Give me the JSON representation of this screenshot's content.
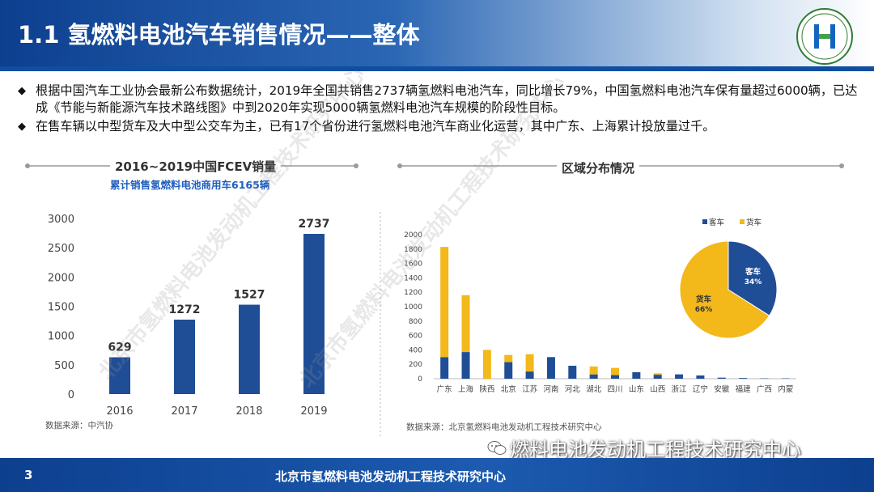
{
  "header": {
    "title": "1.1 氢燃料电池汽车销售情况——整体"
  },
  "bullets": [
    {
      "mark": "◆",
      "text": "根据中国汽车工业协会最新公布数据统计，2019年全国共销售2737辆氢燃料电池汽车，同比增长79%，中国氢燃料电池汽车保有量超过6000辆，已达成《节能与新能源汽车技术路线图》中到2020年实现5000辆氢燃料电池汽车规模的阶段性目标。"
    },
    {
      "mark": "◆",
      "text": "在售车辆以中型货车及大中型公交车为主，已有17个省份进行氢燃料电池汽车商业化运营，其中广东、上海累计投放量过千。"
    }
  ],
  "left_panel": {
    "section_title": "2016~2019中国FCEV销量",
    "subtitle": "累计销售氢燃料电池商用车6165辆",
    "source": "数据来源：中汽协"
  },
  "right_panel": {
    "section_title": "区域分布情况",
    "source": "数据来源：北京氢燃料电池发动机工程技术研究中心"
  },
  "watermark": "北京市氢燃料电池发动机工程技术研究中心",
  "wechat_label": "燃料电池发动机工程技术研究中心",
  "footer": {
    "page": "3",
    "text": "北京市氢燃料电池发动机工程技术研究中心"
  },
  "colors": {
    "blue": "#1f4e96",
    "yellow": "#f3b81a",
    "header": "#0d3f8f"
  },
  "icons": {
    "logo": "emblem-logo-icon",
    "wechat": "wechat-icon"
  },
  "chart_data": [
    {
      "type": "bar",
      "title": "2016~2019中国FCEV销量",
      "categories": [
        "2016",
        "2017",
        "2018",
        "2019"
      ],
      "values": [
        629,
        1272,
        1527,
        2737
      ],
      "data_labels": [
        "629",
        "1272",
        "1527",
        "2737"
      ],
      "ylim": [
        0,
        3000
      ],
      "yticks": [
        0,
        500,
        1000,
        1500,
        2000,
        2500,
        3000
      ],
      "grid": false,
      "color": "#1f4e96"
    },
    {
      "type": "bar",
      "stacked": true,
      "title": "区域分布情况",
      "categories": [
        "广东",
        "上海",
        "陕西",
        "北京",
        "江苏",
        "河南",
        "河北",
        "湖北",
        "四川",
        "山东",
        "山西",
        "浙江",
        "辽宁",
        "安徽",
        "福建",
        "广西",
        "内蒙"
      ],
      "series": [
        {
          "name": "客车",
          "values": [
            300,
            370,
            0,
            230,
            100,
            300,
            180,
            60,
            50,
            90,
            55,
            60,
            45,
            15,
            10,
            5,
            5
          ],
          "color": "#1f4e96"
        },
        {
          "name": "货车",
          "values": [
            1530,
            790,
            400,
            100,
            240,
            0,
            0,
            110,
            100,
            0,
            20,
            0,
            0,
            0,
            0,
            0,
            0
          ],
          "color": "#f3b81a"
        }
      ],
      "ylim": [
        0,
        2000
      ],
      "yticks": [
        0,
        200,
        400,
        600,
        800,
        1000,
        1200,
        1400,
        1600,
        1800,
        2000
      ],
      "grid": false,
      "legend": "top-right"
    },
    {
      "type": "pie",
      "labels": [
        "客车",
        "货车"
      ],
      "values": [
        34,
        66
      ],
      "value_labels": [
        "34%",
        "66%"
      ],
      "legend": "top",
      "colors": [
        "#1f4e96",
        "#f3b81a"
      ]
    }
  ]
}
